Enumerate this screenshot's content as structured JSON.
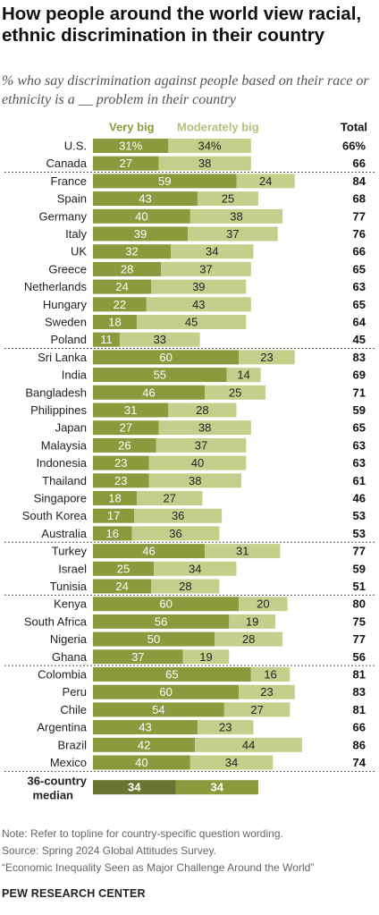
{
  "title": "How people around the world view racial, ethnic discrimination in their country",
  "subtitle": "% who say discrimination against people based on their race or ethnicity is a __ problem in their country",
  "notes": [
    "Note: Refer to topline for country-specific question wording.",
    "Source: Spring 2024 Global Attitudes Survey.",
    "“Economic Inequality Seen as Major Challenge Around the World”"
  ],
  "brand": "PEW RESEARCH CENTER",
  "colors": {
    "very_big": "#8c9a3e",
    "moderately_big": "#c5cf8c",
    "very_big_median": "#6a7430",
    "moderately_big_median": "#8c9a3e",
    "legend_very_big_text": "#8c9a3e",
    "legend_moderately_big_text": "#b5c07a"
  },
  "chart_data": {
    "type": "bar",
    "orientation": "horizontal",
    "stacked": true,
    "legend_placement": "top",
    "total_header": "Total",
    "series": [
      {
        "name": "Very big",
        "values": [
          31,
          27,
          59,
          43,
          40,
          39,
          32,
          28,
          24,
          22,
          18,
          11,
          60,
          55,
          46,
          31,
          27,
          26,
          23,
          23,
          18,
          17,
          16,
          46,
          25,
          24,
          60,
          56,
          50,
          37,
          65,
          60,
          54,
          43,
          42,
          40,
          34
        ]
      },
      {
        "name": "Moderately big",
        "values": [
          34,
          38,
          24,
          25,
          38,
          37,
          34,
          37,
          39,
          43,
          45,
          33,
          23,
          14,
          25,
          28,
          38,
          37,
          40,
          38,
          27,
          36,
          36,
          31,
          34,
          28,
          20,
          19,
          28,
          19,
          16,
          23,
          27,
          23,
          44,
          34,
          34
        ]
      }
    ],
    "categories": [
      "U.S.",
      "Canada",
      "France",
      "Spain",
      "Germany",
      "Italy",
      "UK",
      "Greece",
      "Netherlands",
      "Hungary",
      "Sweden",
      "Poland",
      "Sri Lanka",
      "India",
      "Bangladesh",
      "Philippines",
      "Japan",
      "Malaysia",
      "Indonesia",
      "Thailand",
      "Singapore",
      "South Korea",
      "Australia",
      "Turkey",
      "Israel",
      "Tunisia",
      "Kenya",
      "South Africa",
      "Nigeria",
      "Ghana",
      "Colombia",
      "Peru",
      "Chile",
      "Argentina",
      "Brazil",
      "Mexico",
      "36-country median"
    ],
    "total": [
      "66%",
      "66",
      "84",
      "68",
      "77",
      "76",
      "66",
      "65",
      "63",
      "65",
      "64",
      "45",
      "83",
      "69",
      "71",
      "59",
      "65",
      "63",
      "63",
      "61",
      "46",
      "53",
      "53",
      "77",
      "59",
      "51",
      "80",
      "75",
      "77",
      "56",
      "81",
      "83",
      "81",
      "66",
      "86",
      "74",
      ""
    ],
    "value_labels_first_row": [
      "31%",
      "34%"
    ],
    "group_sizes": [
      2,
      10,
      11,
      3,
      4,
      6,
      1
    ]
  }
}
